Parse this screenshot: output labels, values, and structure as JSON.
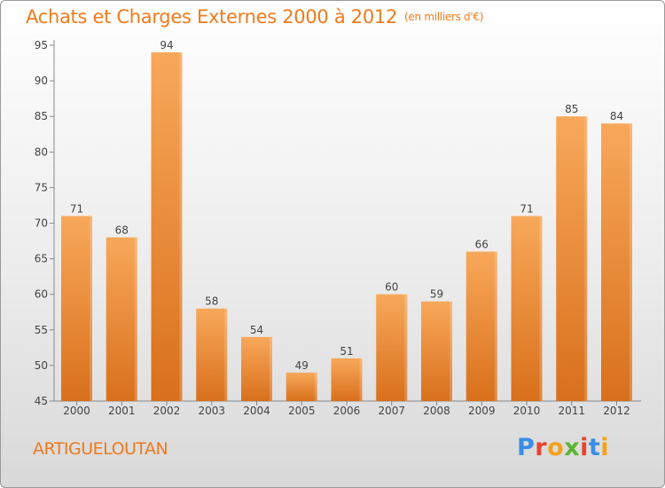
{
  "header": {
    "title": "Achats et Charges Externes 2000 à 2012",
    "unit": "(en milliers d'€)"
  },
  "footer": {
    "commune": "ARTIGUELOUTAN",
    "logo": "Proxiti"
  },
  "colors": {
    "accent": "#f07a1a",
    "bar_top": "#f8a85a",
    "bar_bottom": "#d8701c",
    "logo_letters": [
      "#3a8ee6",
      "#e8432d",
      "#f5a21a",
      "#5bb531",
      "#e8432d",
      "#3a8ee6",
      "#f5a21a"
    ]
  },
  "chart_data": {
    "type": "bar",
    "title": "Achats et Charges Externes 2000 à 2012",
    "subtitle": "(en milliers d'€)",
    "categories": [
      "2000",
      "2001",
      "2002",
      "2003",
      "2004",
      "2005",
      "2006",
      "2007",
      "2008",
      "2009",
      "2010",
      "2011",
      "2012"
    ],
    "values": [
      71,
      68,
      94,
      58,
      54,
      49,
      51,
      60,
      59,
      66,
      71,
      85,
      84
    ],
    "data_labels": [
      "71",
      "68",
      "94",
      "58",
      "54",
      "49",
      "51",
      "60",
      "59",
      "66",
      "71",
      "85",
      "84"
    ],
    "yticks": [
      45,
      50,
      55,
      60,
      65,
      70,
      75,
      80,
      85,
      90,
      95
    ],
    "ytick_labels": [
      "45",
      "50",
      "55",
      "60",
      "65",
      "70",
      "75",
      "80",
      "85",
      "90",
      "95"
    ],
    "ylim": [
      45,
      95
    ],
    "xlabel": "",
    "ylabel": "",
    "grid": false,
    "legend": false
  }
}
